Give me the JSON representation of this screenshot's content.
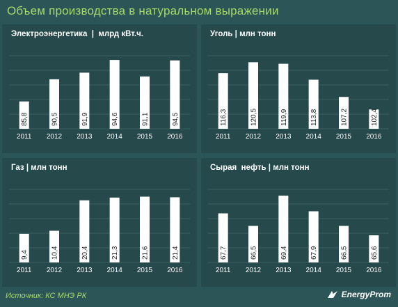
{
  "title": "Объем производства  в натуральном выражении",
  "source": "Источник: КС МНЭ РК",
  "logo_text": "EnergyProm",
  "colors": {
    "bar": "#ffffff",
    "panel": "#26494b",
    "background": "#2c5557",
    "accent": "#a6d86a",
    "gridline": "#3a6163",
    "text": "#ffffff"
  },
  "chart_data": [
    {
      "type": "bar",
      "title": "Электроэнергетика  |  млрд кВт.ч.",
      "categories": [
        "2011",
        "2012",
        "2013",
        "2014",
        "2015",
        "2016"
      ],
      "values": [
        85.8,
        90.5,
        91.9,
        94.6,
        91.1,
        94.5
      ],
      "labels": [
        "85,8",
        "90,5",
        "91,9",
        "94,6",
        "91,1",
        "94,5"
      ],
      "ylim": [
        80,
        95.5
      ]
    },
    {
      "type": "bar",
      "title": "Уголь | млн тонн",
      "categories": [
        "2011",
        "2012",
        "2013",
        "2014",
        "2015",
        "2016"
      ],
      "values": [
        116.3,
        120.5,
        119.9,
        113.8,
        107.2,
        102.4
      ],
      "labels": [
        "116,3",
        "120,5",
        "119,9",
        "113,8",
        "107,2",
        "102,4"
      ],
      "ylim": [
        95,
        123
      ]
    },
    {
      "type": "bar",
      "title": "Газ | млн тонн",
      "categories": [
        "2011",
        "2012",
        "2013",
        "2014",
        "2015",
        "2016"
      ],
      "values": [
        9.4,
        10.4,
        20.4,
        21.3,
        21.6,
        21.4
      ],
      "labels": [
        "9,4",
        "10,4",
        "20,4",
        "21,3",
        "21,6",
        "21,4"
      ],
      "ylim": [
        0,
        24
      ]
    },
    {
      "type": "bar",
      "title": "Сырая  нефть | млн тонн",
      "categories": [
        "2011",
        "2012",
        "2013",
        "2014",
        "2015",
        "2016"
      ],
      "values": [
        67.7,
        66.5,
        69.4,
        67.9,
        66.5,
        65.6
      ],
      "labels": [
        "67,7",
        "66,5",
        "69,4",
        "67,9",
        "66,5",
        "65,6"
      ],
      "ylim": [
        63,
        70
      ]
    }
  ]
}
